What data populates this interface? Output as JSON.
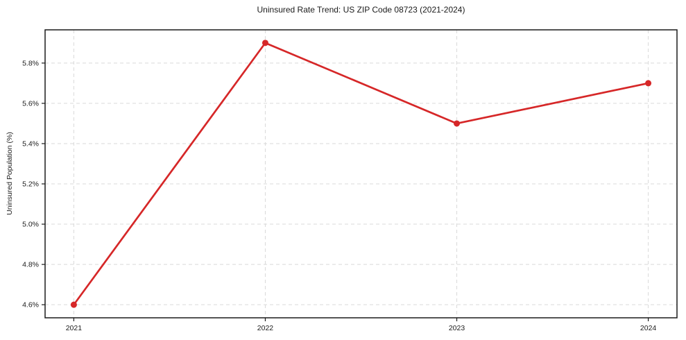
{
  "chart_data": {
    "type": "line",
    "title": "Uninsured Rate Trend: US ZIP Code 08723 (2021-2024)",
    "xlabel": "",
    "ylabel": "Uninsured Population (%)",
    "x": [
      2021,
      2022,
      2023,
      2024
    ],
    "x_tick_labels": [
      "2021",
      "2022",
      "2023",
      "2024"
    ],
    "series": [
      {
        "name": "Uninsured Population (%)",
        "values": [
          4.6,
          5.9,
          5.5,
          5.7
        ]
      }
    ],
    "y_ticks": [
      4.6,
      4.8,
      5.0,
      5.2,
      5.4,
      5.6,
      5.8
    ],
    "y_tick_labels": [
      "4.6%",
      "4.8%",
      "5.0%",
      "5.2%",
      "5.4%",
      "5.6%",
      "5.8%"
    ],
    "ylim": [
      4.535,
      5.965
    ],
    "xlim": [
      2020.85,
      2024.15
    ],
    "grid": true,
    "legend": "none",
    "colors": {
      "line": "#d62728",
      "marker": "#d62728",
      "grid": "#d9d9d9",
      "axis": "#1a1a1a",
      "background": "#ffffff"
    }
  }
}
